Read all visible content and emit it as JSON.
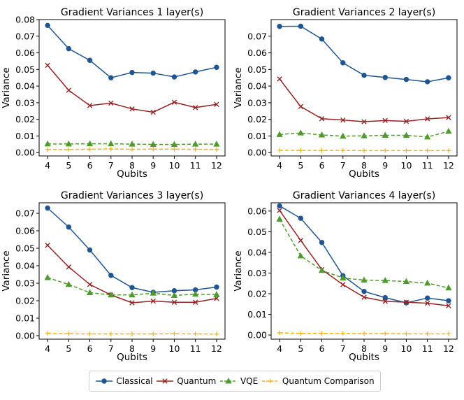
{
  "colors": {
    "Classical": "#1f5591",
    "Quantum": "#962222",
    "VQE": "#4f9a2d",
    "Quantum Comparison": "#f2b21a"
  },
  "legend": {
    "items": [
      {
        "name": "Classical",
        "marker": "circle",
        "dash": "solid"
      },
      {
        "name": "Quantum",
        "marker": "x",
        "dash": "solid"
      },
      {
        "name": "VQE",
        "marker": "triangle",
        "dash": "dashed"
      },
      {
        "name": "Quantum Comparison",
        "marker": "plus",
        "dash": "dashed"
      }
    ]
  },
  "chart_data": [
    {
      "type": "line",
      "title": "Gradient Variances 1 layer(s)",
      "xlabel": "Qubits",
      "ylabel": "Variance",
      "x": [
        4,
        5,
        6,
        7,
        8,
        9,
        10,
        11,
        12
      ],
      "xlim": [
        3.6,
        12.4
      ],
      "ylim": [
        -0.002,
        0.08
      ],
      "yticks": [
        0.0,
        0.01,
        0.02,
        0.03,
        0.04,
        0.05,
        0.06,
        0.07,
        0.08
      ],
      "ytick_labels": [
        "0.00",
        "0.01",
        "0.02",
        "0.03",
        "0.04",
        "0.05",
        "0.06",
        "0.07",
        "0.08"
      ],
      "series": [
        {
          "name": "Classical",
          "values": [
            0.0765,
            0.0625,
            0.0555,
            0.045,
            0.0482,
            0.0478,
            0.0455,
            0.0485,
            0.0513
          ]
        },
        {
          "name": "Quantum",
          "values": [
            0.0525,
            0.0375,
            0.0283,
            0.0298,
            0.0263,
            0.0243,
            0.0303,
            0.0271,
            0.029
          ]
        },
        {
          "name": "VQE",
          "values": [
            0.0052,
            0.0052,
            0.0053,
            0.0053,
            0.0051,
            0.0049,
            0.0049,
            0.0051,
            0.0051
          ]
        },
        {
          "name": "Quantum Comparison",
          "values": [
            0.0019,
            0.0019,
            0.002,
            0.0022,
            0.002,
            0.0021,
            0.0021,
            0.002,
            0.0019
          ]
        }
      ]
    },
    {
      "type": "line",
      "title": "Gradient Variances 2 layer(s)",
      "xlabel": "Qubits",
      "ylabel": "Variance",
      "x": [
        4,
        5,
        6,
        7,
        8,
        9,
        10,
        11,
        12
      ],
      "xlim": [
        3.6,
        12.4
      ],
      "ylim": [
        -0.002,
        0.08
      ],
      "yticks": [
        0.0,
        0.01,
        0.02,
        0.03,
        0.04,
        0.05,
        0.06,
        0.07
      ],
      "ytick_labels": [
        "0.00",
        "0.01",
        "0.02",
        "0.03",
        "0.04",
        "0.05",
        "0.06",
        "0.07"
      ],
      "series": [
        {
          "name": "Classical",
          "values": [
            0.0759,
            0.076,
            0.0683,
            0.054,
            0.0465,
            0.0452,
            0.044,
            0.0426,
            0.045
          ]
        },
        {
          "name": "Quantum",
          "values": [
            0.0443,
            0.0277,
            0.0204,
            0.0196,
            0.0186,
            0.0193,
            0.0188,
            0.0203,
            0.0211
          ]
        },
        {
          "name": "VQE",
          "values": [
            0.0109,
            0.0118,
            0.0106,
            0.0099,
            0.0101,
            0.0104,
            0.0104,
            0.0094,
            0.0128
          ]
        },
        {
          "name": "Quantum Comparison",
          "values": [
            0.0014,
            0.0013,
            0.0013,
            0.0013,
            0.0012,
            0.0012,
            0.0012,
            0.0012,
            0.0012
          ]
        }
      ]
    },
    {
      "type": "line",
      "title": "Gradient Variances 3 layer(s)",
      "xlabel": "Qubits",
      "ylabel": "Variance",
      "x": [
        4,
        5,
        6,
        7,
        8,
        9,
        10,
        11,
        12
      ],
      "xlim": [
        3.6,
        12.4
      ],
      "ylim": [
        -0.002,
        0.076
      ],
      "yticks": [
        0.0,
        0.01,
        0.02,
        0.03,
        0.04,
        0.05,
        0.06,
        0.07
      ],
      "ytick_labels": [
        "0.00",
        "0.01",
        "0.02",
        "0.03",
        "0.04",
        "0.05",
        "0.06",
        "0.07"
      ],
      "series": [
        {
          "name": "Classical",
          "values": [
            0.073,
            0.0621,
            0.049,
            0.0345,
            0.0275,
            0.0248,
            0.0257,
            0.0262,
            0.0278
          ]
        },
        {
          "name": "Quantum",
          "values": [
            0.0517,
            0.0393,
            0.0293,
            0.0233,
            0.0188,
            0.0198,
            0.0191,
            0.0191,
            0.0213
          ]
        },
        {
          "name": "VQE",
          "values": [
            0.0332,
            0.0293,
            0.0246,
            0.0233,
            0.0233,
            0.0243,
            0.023,
            0.0237,
            0.0235
          ]
        },
        {
          "name": "Quantum Comparison",
          "values": [
            0.0014,
            0.0011,
            0.001,
            0.001,
            0.001,
            0.001,
            0.0011,
            0.001,
            0.0009
          ]
        }
      ]
    },
    {
      "type": "line",
      "title": "Gradient Variances 4 layer(s)",
      "xlabel": "Qubits",
      "ylabel": "Variance",
      "x": [
        4,
        5,
        6,
        7,
        8,
        9,
        10,
        11,
        12
      ],
      "xlim": [
        3.6,
        12.4
      ],
      "ylim": [
        -0.002,
        0.064
      ],
      "yticks": [
        0.0,
        0.01,
        0.02,
        0.03,
        0.04,
        0.05,
        0.06
      ],
      "ytick_labels": [
        "0.00",
        "0.01",
        "0.02",
        "0.03",
        "0.04",
        "0.05",
        "0.06"
      ],
      "series": [
        {
          "name": "Classical",
          "values": [
            0.0625,
            0.0565,
            0.0448,
            0.0287,
            0.0211,
            0.0181,
            0.0156,
            0.0179,
            0.0166
          ]
        },
        {
          "name": "Quantum",
          "values": [
            0.0603,
            0.0458,
            0.0317,
            0.0244,
            0.0183,
            0.0163,
            0.0159,
            0.0154,
            0.0142
          ]
        },
        {
          "name": "VQE",
          "values": [
            0.0561,
            0.0383,
            0.0313,
            0.0276,
            0.0266,
            0.0264,
            0.0259,
            0.0251,
            0.0228
          ]
        },
        {
          "name": "Quantum Comparison",
          "values": [
            0.0011,
            0.0008,
            0.0008,
            0.0008,
            0.0007,
            0.0007,
            0.0006,
            0.0006,
            0.0006
          ]
        }
      ]
    }
  ]
}
